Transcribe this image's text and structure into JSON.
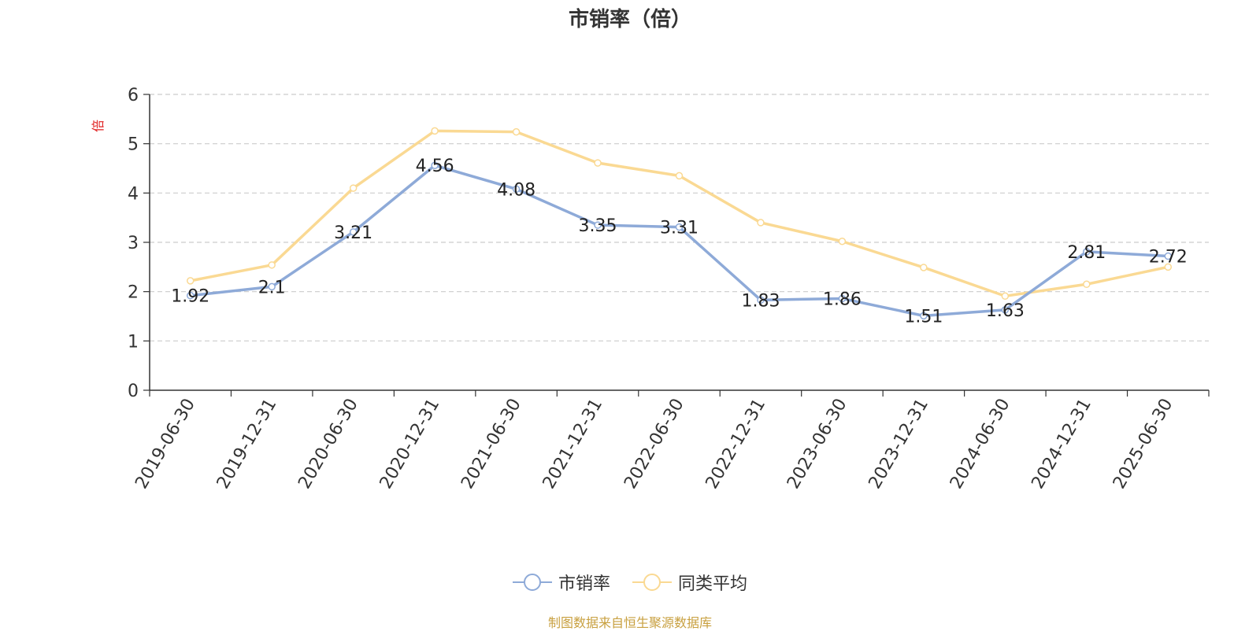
{
  "chart_data": {
    "type": "line",
    "title": "市销率（倍）",
    "ylabel": "倍",
    "ylim": [
      0,
      6
    ],
    "yticks": [
      0,
      1,
      2,
      3,
      4,
      5,
      6
    ],
    "grid": true,
    "legend_position": "bottom",
    "categories": [
      "2019-06-30",
      "2019-12-31",
      "2020-06-30",
      "2020-12-31",
      "2021-06-30",
      "2021-12-31",
      "2022-06-30",
      "2022-12-31",
      "2023-06-30",
      "2023-12-31",
      "2024-06-30",
      "2024-12-31",
      "2025-06-30"
    ],
    "series": [
      {
        "name": "市销率",
        "color": "#8eaad8",
        "values": [
          1.92,
          2.1,
          3.21,
          4.56,
          4.08,
          3.35,
          3.31,
          1.83,
          1.86,
          1.51,
          1.63,
          2.81,
          2.72
        ],
        "labels": [
          "1.92",
          "2.1",
          "3.21",
          "4.56",
          "4.08",
          "3.35",
          "3.31",
          "1.83",
          "1.86",
          "1.51",
          "1.63",
          "2.81",
          "2.72"
        ]
      },
      {
        "name": "同类平均",
        "color": "#fad993",
        "values": [
          2.22,
          2.54,
          4.1,
          5.26,
          5.24,
          4.61,
          4.35,
          3.4,
          3.02,
          2.49,
          1.91,
          2.15,
          2.5
        ]
      }
    ]
  },
  "source_note": "制图数据来自恒生聚源数据库"
}
